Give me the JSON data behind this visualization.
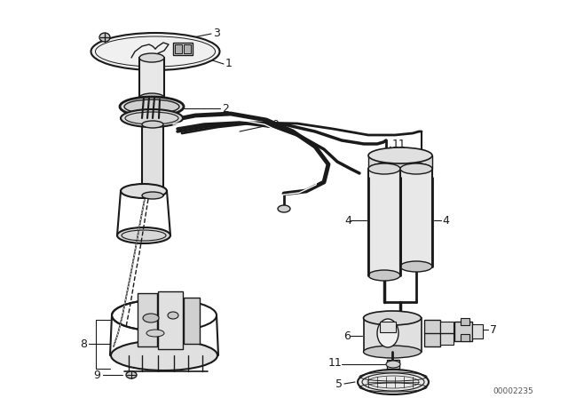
{
  "bg_color": "#ffffff",
  "line_color": "#1a1a1a",
  "part_code": "00002235",
  "fig_w": 6.4,
  "fig_h": 4.48,
  "dpi": 100
}
